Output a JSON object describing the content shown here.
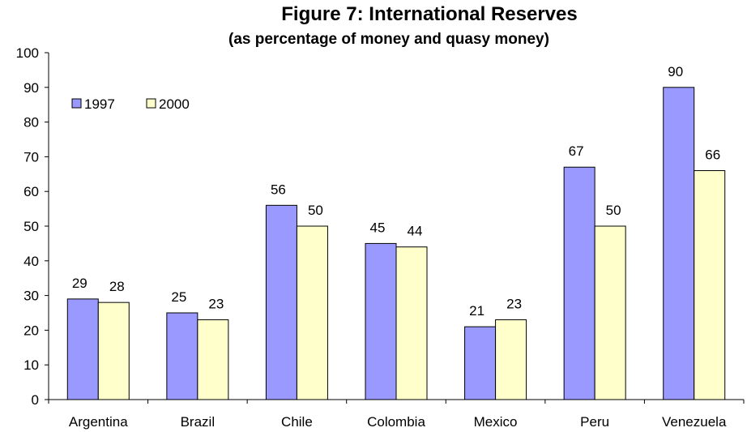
{
  "chart_data": {
    "type": "bar",
    "title": "Figure 7: International Reserves",
    "subtitle": "(as percentage of money and quasy money)",
    "categories": [
      "Argentina",
      "Brazil",
      "Chile",
      "Colombia",
      "Mexico",
      "Peru",
      "Venezuela"
    ],
    "series": [
      {
        "name": "1997",
        "values": [
          29,
          25,
          56,
          45,
          21,
          67,
          90
        ],
        "labels": [
          "29",
          "25",
          "56",
          "45",
          "21",
          "67",
          "90"
        ],
        "color": "#9999FF"
      },
      {
        "name": "2000",
        "values": [
          28,
          23,
          50,
          44,
          23,
          50,
          66
        ],
        "labels": [
          "28",
          "23",
          "50",
          "44",
          "23",
          "50",
          "66"
        ],
        "color": "#FFFFCC"
      }
    ],
    "yticks": [
      "0",
      "10",
      "20",
      "30",
      "40",
      "50",
      "60",
      "70",
      "80",
      "90",
      "100"
    ],
    "ylim": [
      0,
      100
    ],
    "grid": false,
    "legend": "top-left"
  }
}
